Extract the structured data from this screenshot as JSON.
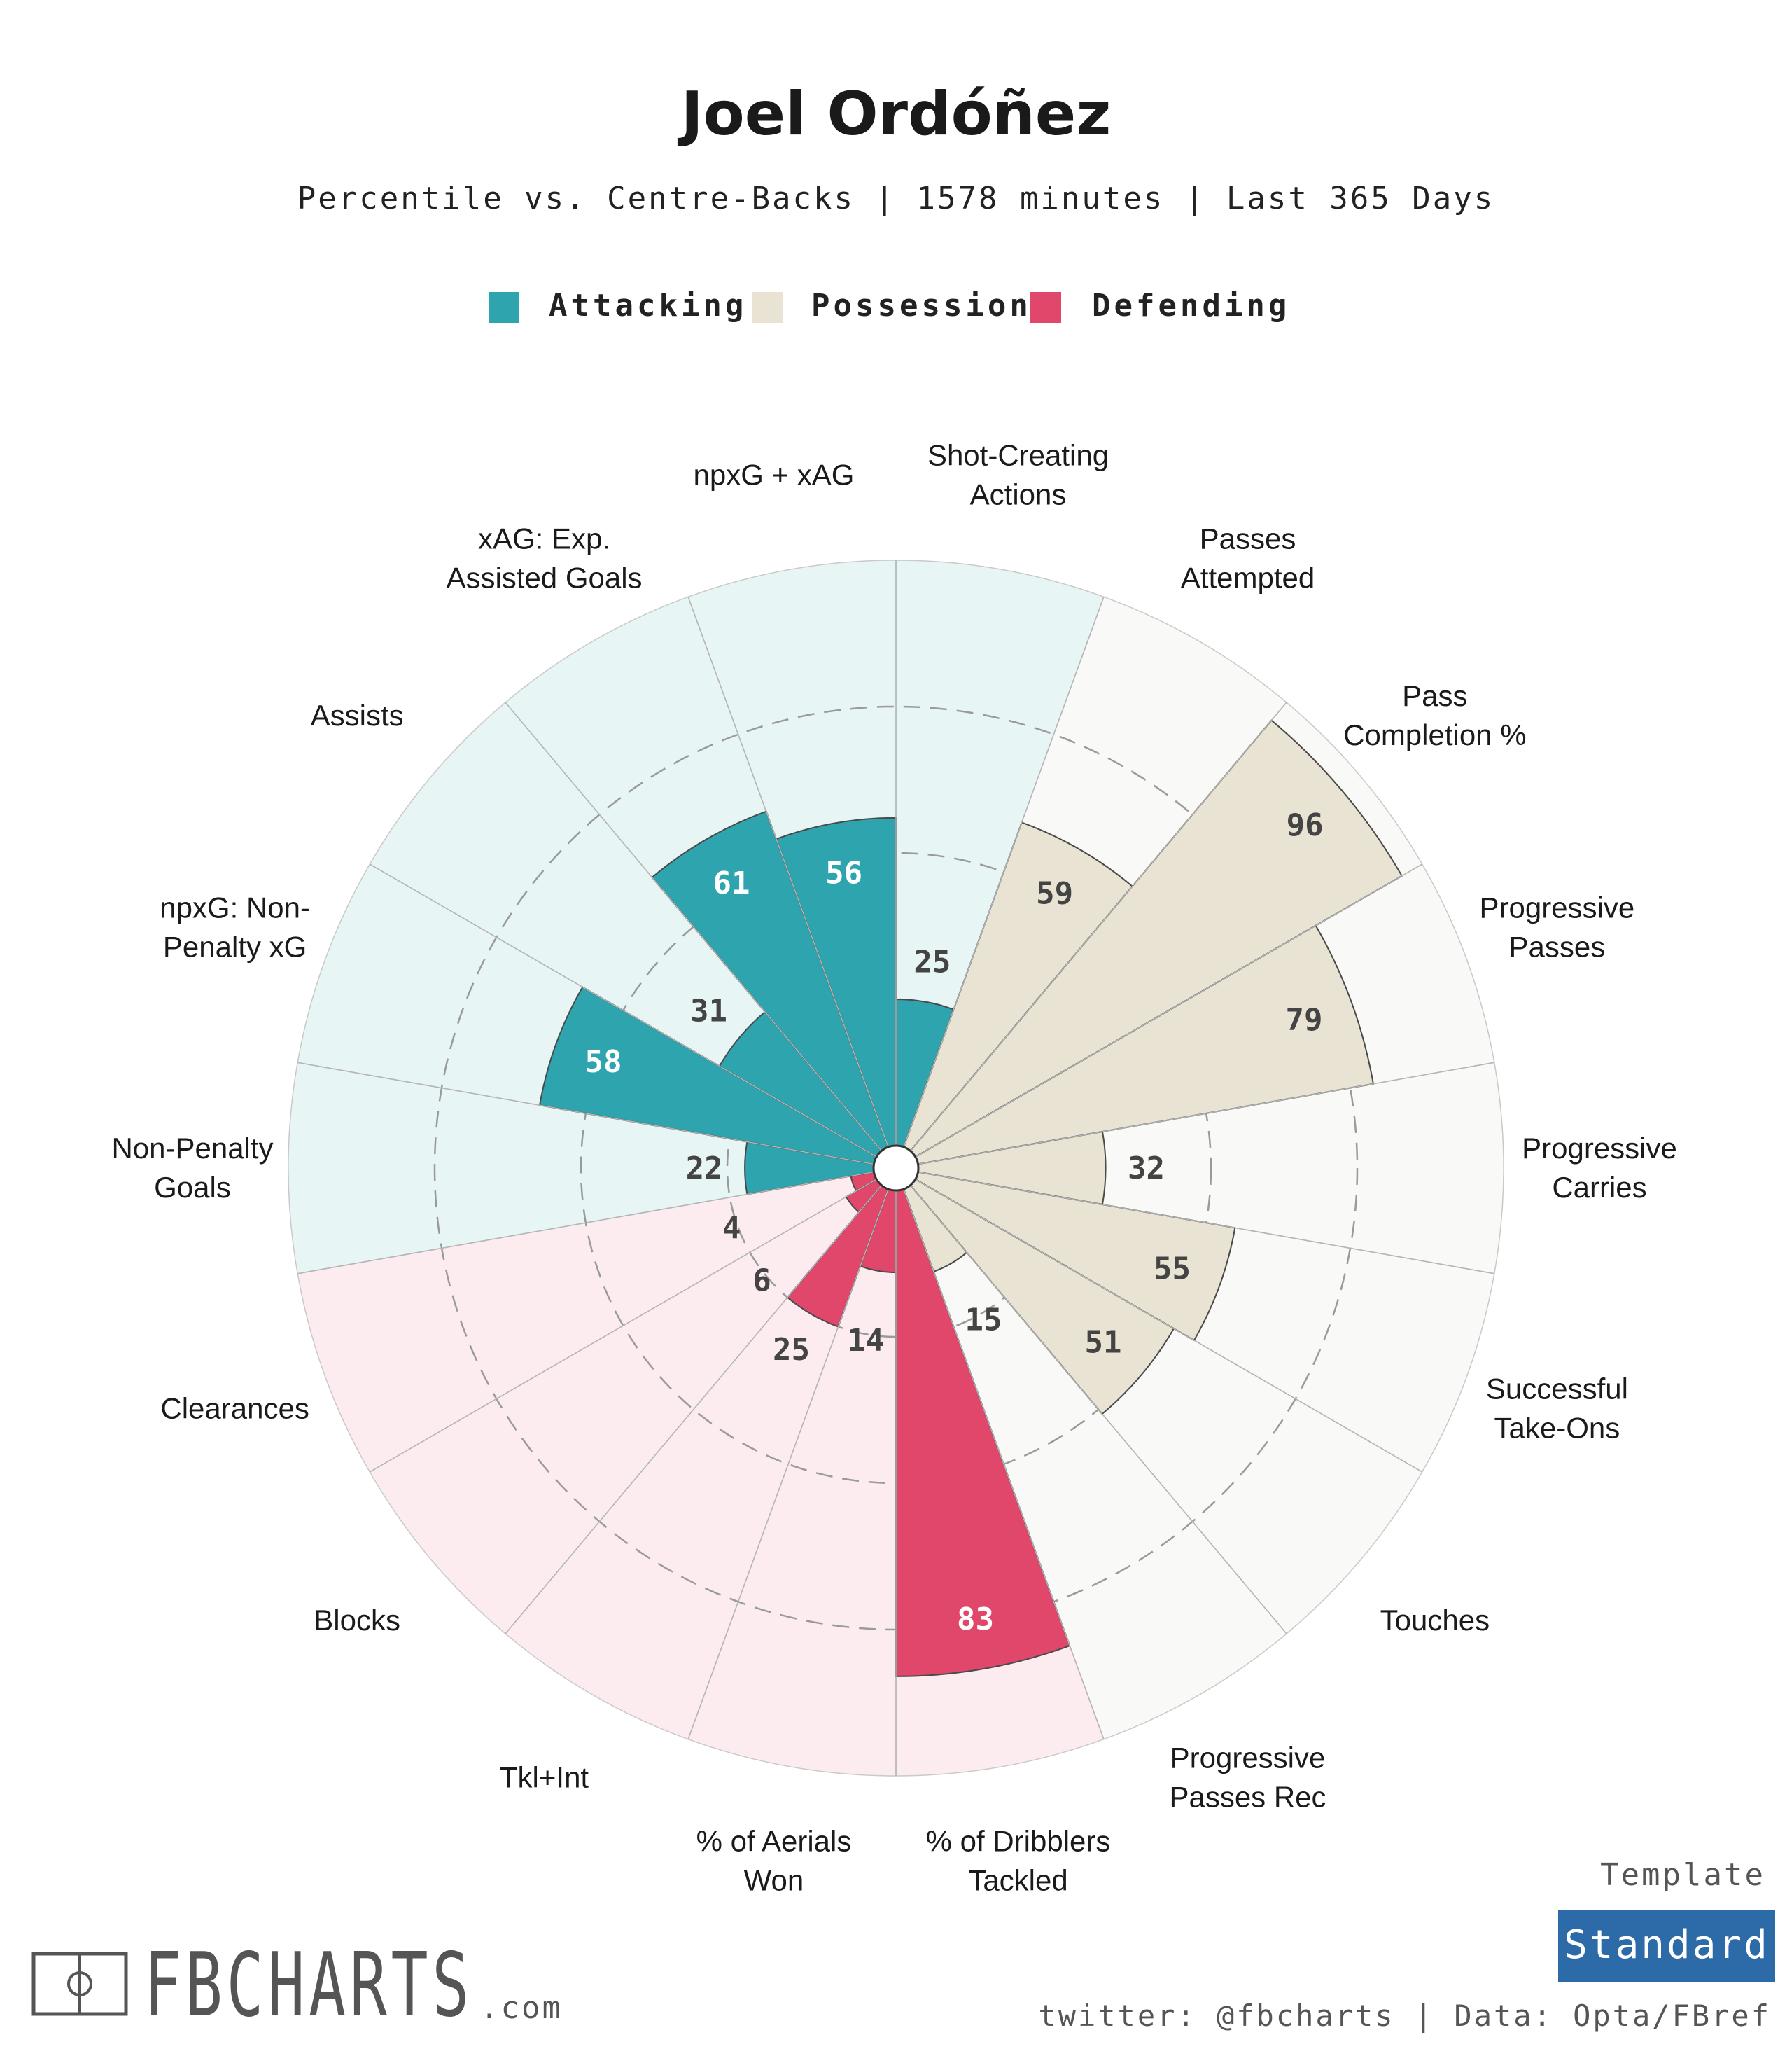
{
  "header": {
    "title": "Joel Ordóñez",
    "subtitle": "Percentile vs. Centre-Backs | 1578 minutes | Last 365 Days"
  },
  "legend": [
    {
      "label": "Attacking",
      "color": "#2ea5ae"
    },
    {
      "label": "Possession",
      "color": "#e8e3d3"
    },
    {
      "label": "Defending",
      "color": "#e1476a"
    }
  ],
  "chart_data": {
    "type": "polar-bar",
    "range": [
      0,
      100
    ],
    "grid_rings": [
      25,
      50,
      75
    ],
    "categories": [
      {
        "label": "Shot-Creating\nActions",
        "value": 25,
        "group": "Attacking"
      },
      {
        "label": "Passes\nAttempted",
        "value": 59,
        "group": "Possession"
      },
      {
        "label": "Pass\nCompletion %",
        "value": 96,
        "group": "Possession"
      },
      {
        "label": "Progressive\nPasses",
        "value": 79,
        "group": "Possession"
      },
      {
        "label": "Progressive\nCarries",
        "value": 32,
        "group": "Possession"
      },
      {
        "label": "Successful\nTake-Ons",
        "value": 55,
        "group": "Possession"
      },
      {
        "label": "Touches",
        "value": 51,
        "group": "Possession"
      },
      {
        "label": "Progressive\nPasses Rec",
        "value": 15,
        "group": "Possession"
      },
      {
        "label": "% of Dribblers\nTackled",
        "value": 83,
        "group": "Defending"
      },
      {
        "label": "% of Aerials\nWon",
        "value": 14,
        "group": "Defending"
      },
      {
        "label": "Tkl+Int",
        "value": 25,
        "group": "Defending"
      },
      {
        "label": "Blocks",
        "value": 6,
        "group": "Defending"
      },
      {
        "label": "Clearances",
        "value": 4,
        "group": "Defending"
      },
      {
        "label": "Non-Penalty\nGoals",
        "value": 22,
        "group": "Attacking"
      },
      {
        "label": "npxG: Non-\nPenalty xG",
        "value": 58,
        "group": "Attacking"
      },
      {
        "label": "Assists",
        "value": 31,
        "group": "Attacking"
      },
      {
        "label": "xAG: Exp.\nAssisted Goals",
        "value": 61,
        "group": "Attacking"
      },
      {
        "label": "npxG + xAG",
        "value": 56,
        "group": "Attacking"
      }
    ]
  },
  "colors": {
    "attacking_bg": "#e8f5f5",
    "possession_bg": "#f9f9f7",
    "defending_bg": "#fcecf0"
  },
  "footer": {
    "brand": "FBCHARTS",
    "brand_suffix": ".com",
    "template_label": "Template",
    "template_value": "Standard",
    "credits": "twitter: @fbcharts | Data: Opta/FBref"
  }
}
